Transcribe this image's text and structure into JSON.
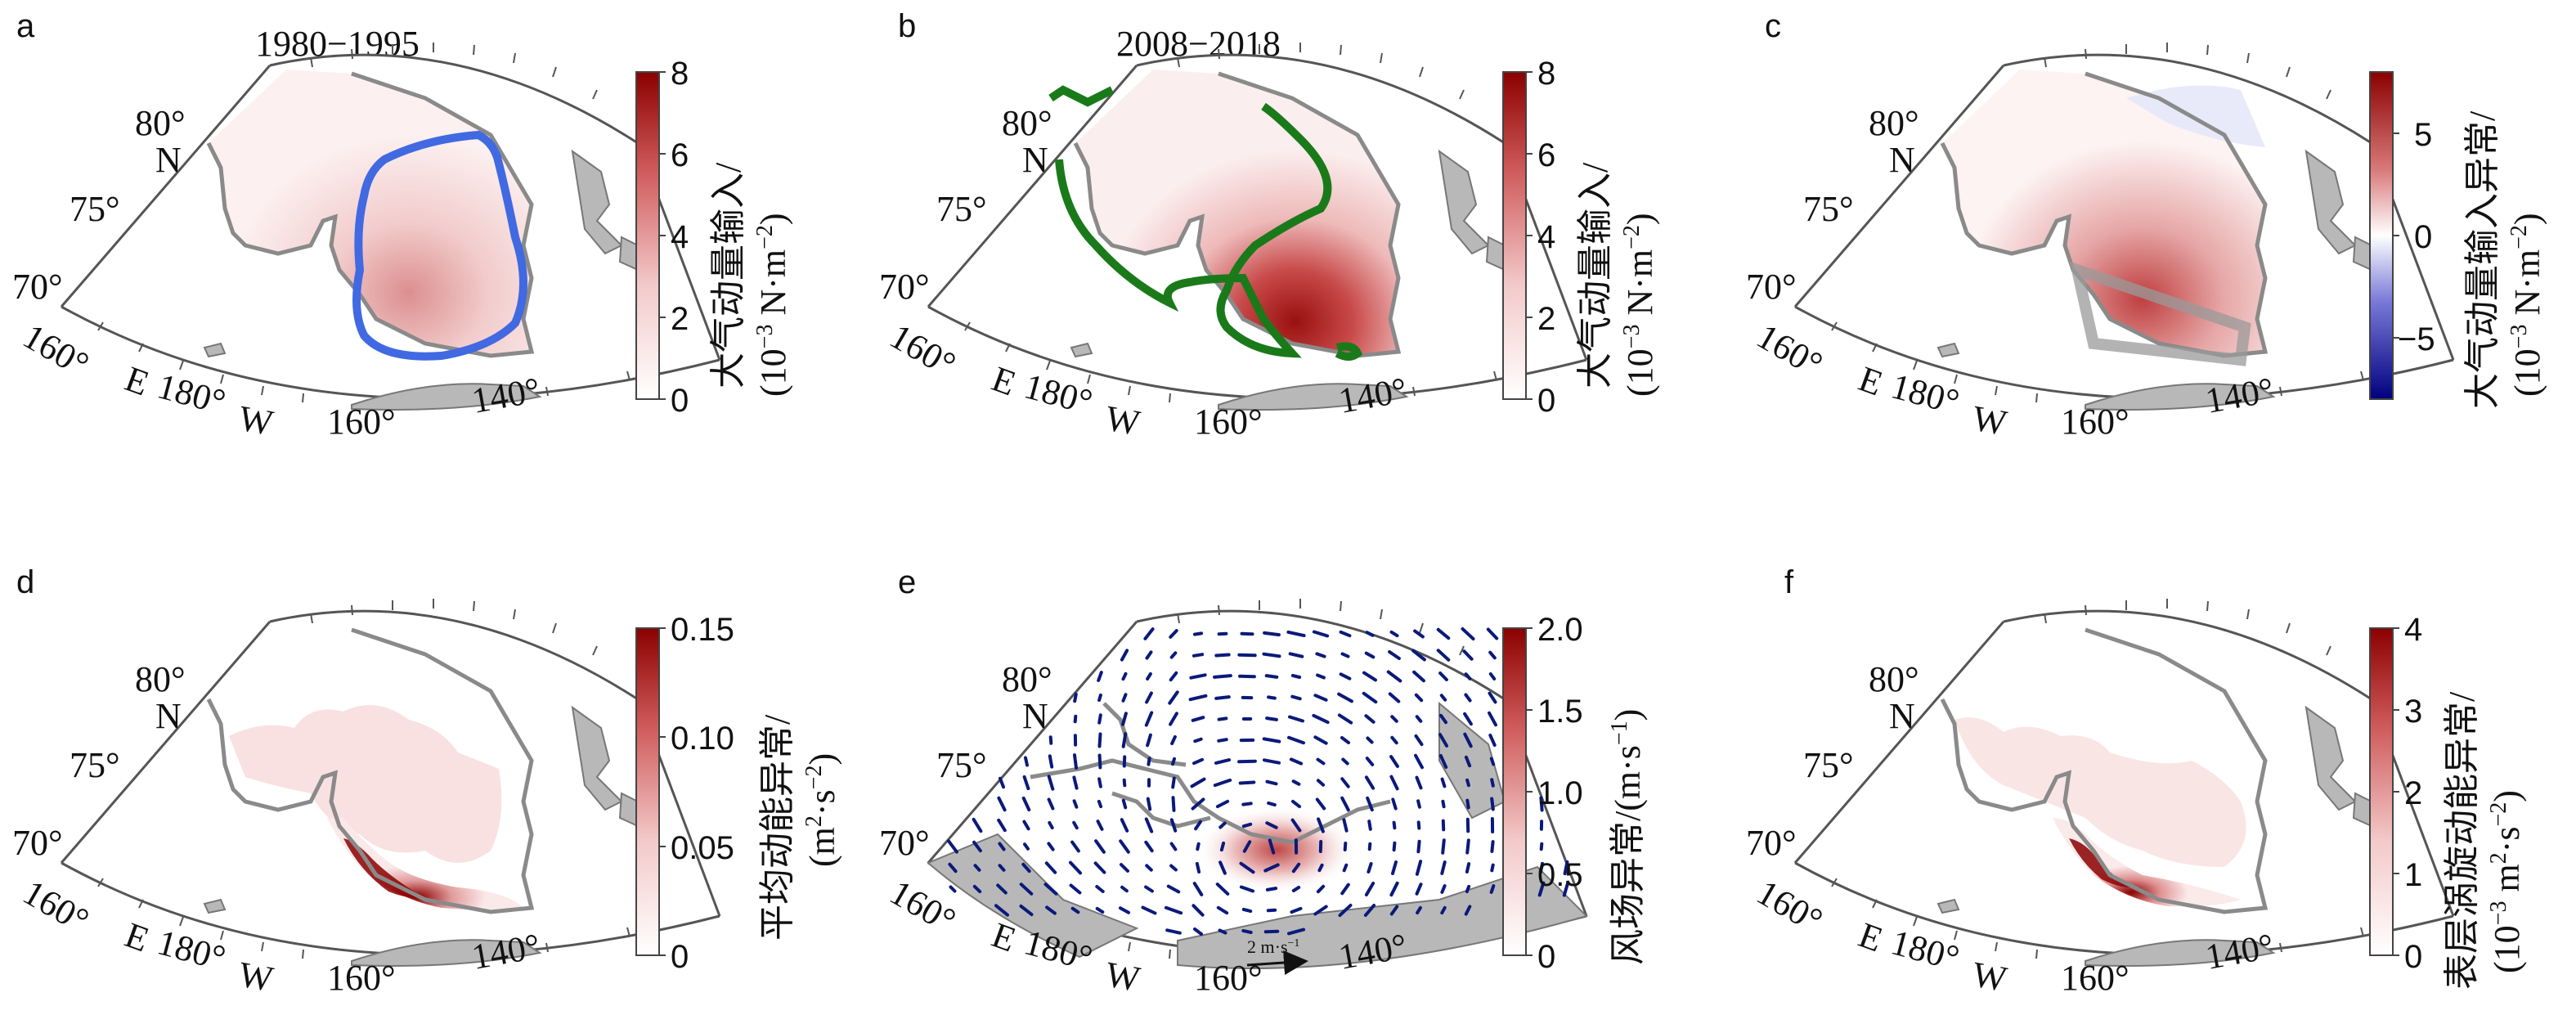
{
  "panels": {
    "a": {
      "letter": "a",
      "period": "1980−1995",
      "lat1": "80°",
      "N": "N",
      "lat2": "75°",
      "lat3": "70°",
      "lon1": "160°",
      "lonE": "E",
      "lon2": "180°",
      "lonW": "W",
      "lon3": "160°",
      "lon4": "140°",
      "colorbar": {
        "ticks": [
          "8",
          "6",
          "4",
          "2",
          "0"
        ],
        "title1": "大气动量输入/",
        "title2": "(10",
        "title2sup": "−3",
        "title2b": " N·m",
        "title2sup2": "−2",
        "title2c": ")"
      }
    },
    "b": {
      "letter": "b",
      "period": "2008−2018",
      "lat1": "80°",
      "N": "N",
      "lat2": "75°",
      "lat3": "70°",
      "lon1": "160°",
      "lonE": "E",
      "lon2": "180°",
      "lonW": "W",
      "lon3": "160°",
      "lon4": "140°",
      "colorbar": {
        "ticks": [
          "8",
          "6",
          "4",
          "2",
          "0"
        ],
        "title1": "大气动量输入/",
        "title2": "(10",
        "title2sup": "−3",
        "title2b": " N·m",
        "title2sup2": "−2",
        "title2c": ")"
      }
    },
    "c": {
      "letter": "c",
      "lat1": "80°",
      "N": "N",
      "lat2": "75°",
      "lat3": "70°",
      "lon1": "160°",
      "lonE": "E",
      "lon2": "180°",
      "lonW": "W",
      "lon3": "160°",
      "lon4": "140°",
      "colorbar": {
        "ticks": [
          "5",
          "0",
          "−5"
        ],
        "title1": "大气动量输入异常/",
        "title2": "(10",
        "title2sup": "−3",
        "title2b": " N·m",
        "title2sup2": "−2",
        "title2c": ")"
      }
    },
    "d": {
      "letter": "d",
      "lat1": "80°",
      "N": "N",
      "lat2": "75°",
      "lat3": "70°",
      "lon1": "160°",
      "lonE": "E",
      "lon2": "180°",
      "lonW": "W",
      "lon3": "160°",
      "lon4": "140°",
      "colorbar": {
        "ticks": [
          "0.15",
          "0.10",
          "0.05",
          "0"
        ],
        "title1": "平均动能异常/",
        "title2": "(m",
        "title2sup": "2",
        "title2b": "·s",
        "title2sup2": "−2",
        "title2c": ")"
      }
    },
    "e": {
      "letter": "e",
      "lat1": "80°",
      "N": "N",
      "lat2": "75°",
      "lat3": "70°",
      "lon1": "160°",
      "lonE": "E",
      "lon2": "180°",
      "lonW": "W",
      "lon3": "160°",
      "lon4": "140°",
      "scale": "2 m·s",
      "scale_sup": "−1",
      "colorbar": {
        "ticks": [
          "2.0",
          "1.5",
          "1.0",
          "0.5",
          "0"
        ],
        "title1": "风场异常/(m·s",
        "title1sup": "−1",
        "title1c": ")"
      }
    },
    "f": {
      "letter": "f",
      "lat1": "80°",
      "N": "N",
      "lat2": "75°",
      "lat3": "70°",
      "lon1": "160°",
      "lonE": "E",
      "lon2": "180°",
      "lonW": "W",
      "lon3": "160°",
      "lon4": "140°",
      "colorbar": {
        "ticks": [
          "4",
          "3",
          "2",
          "1",
          "0"
        ],
        "title1": "表层涡旋动能异常/",
        "title2": "(10",
        "title2sup": "−3",
        "title2b": " m",
        "title2sup2": "2",
        "title2c": "·s",
        "title2sup3": "−2",
        "title2d": ")"
      }
    }
  },
  "colors": {
    "land": "#b8b8b8",
    "coast": "#8a8a8a",
    "blue_contour": "#4169e1",
    "green_contour": "#1a7a1a",
    "vector": "#0a1a7a",
    "high": "#8b0000",
    "neg": "#000080"
  }
}
